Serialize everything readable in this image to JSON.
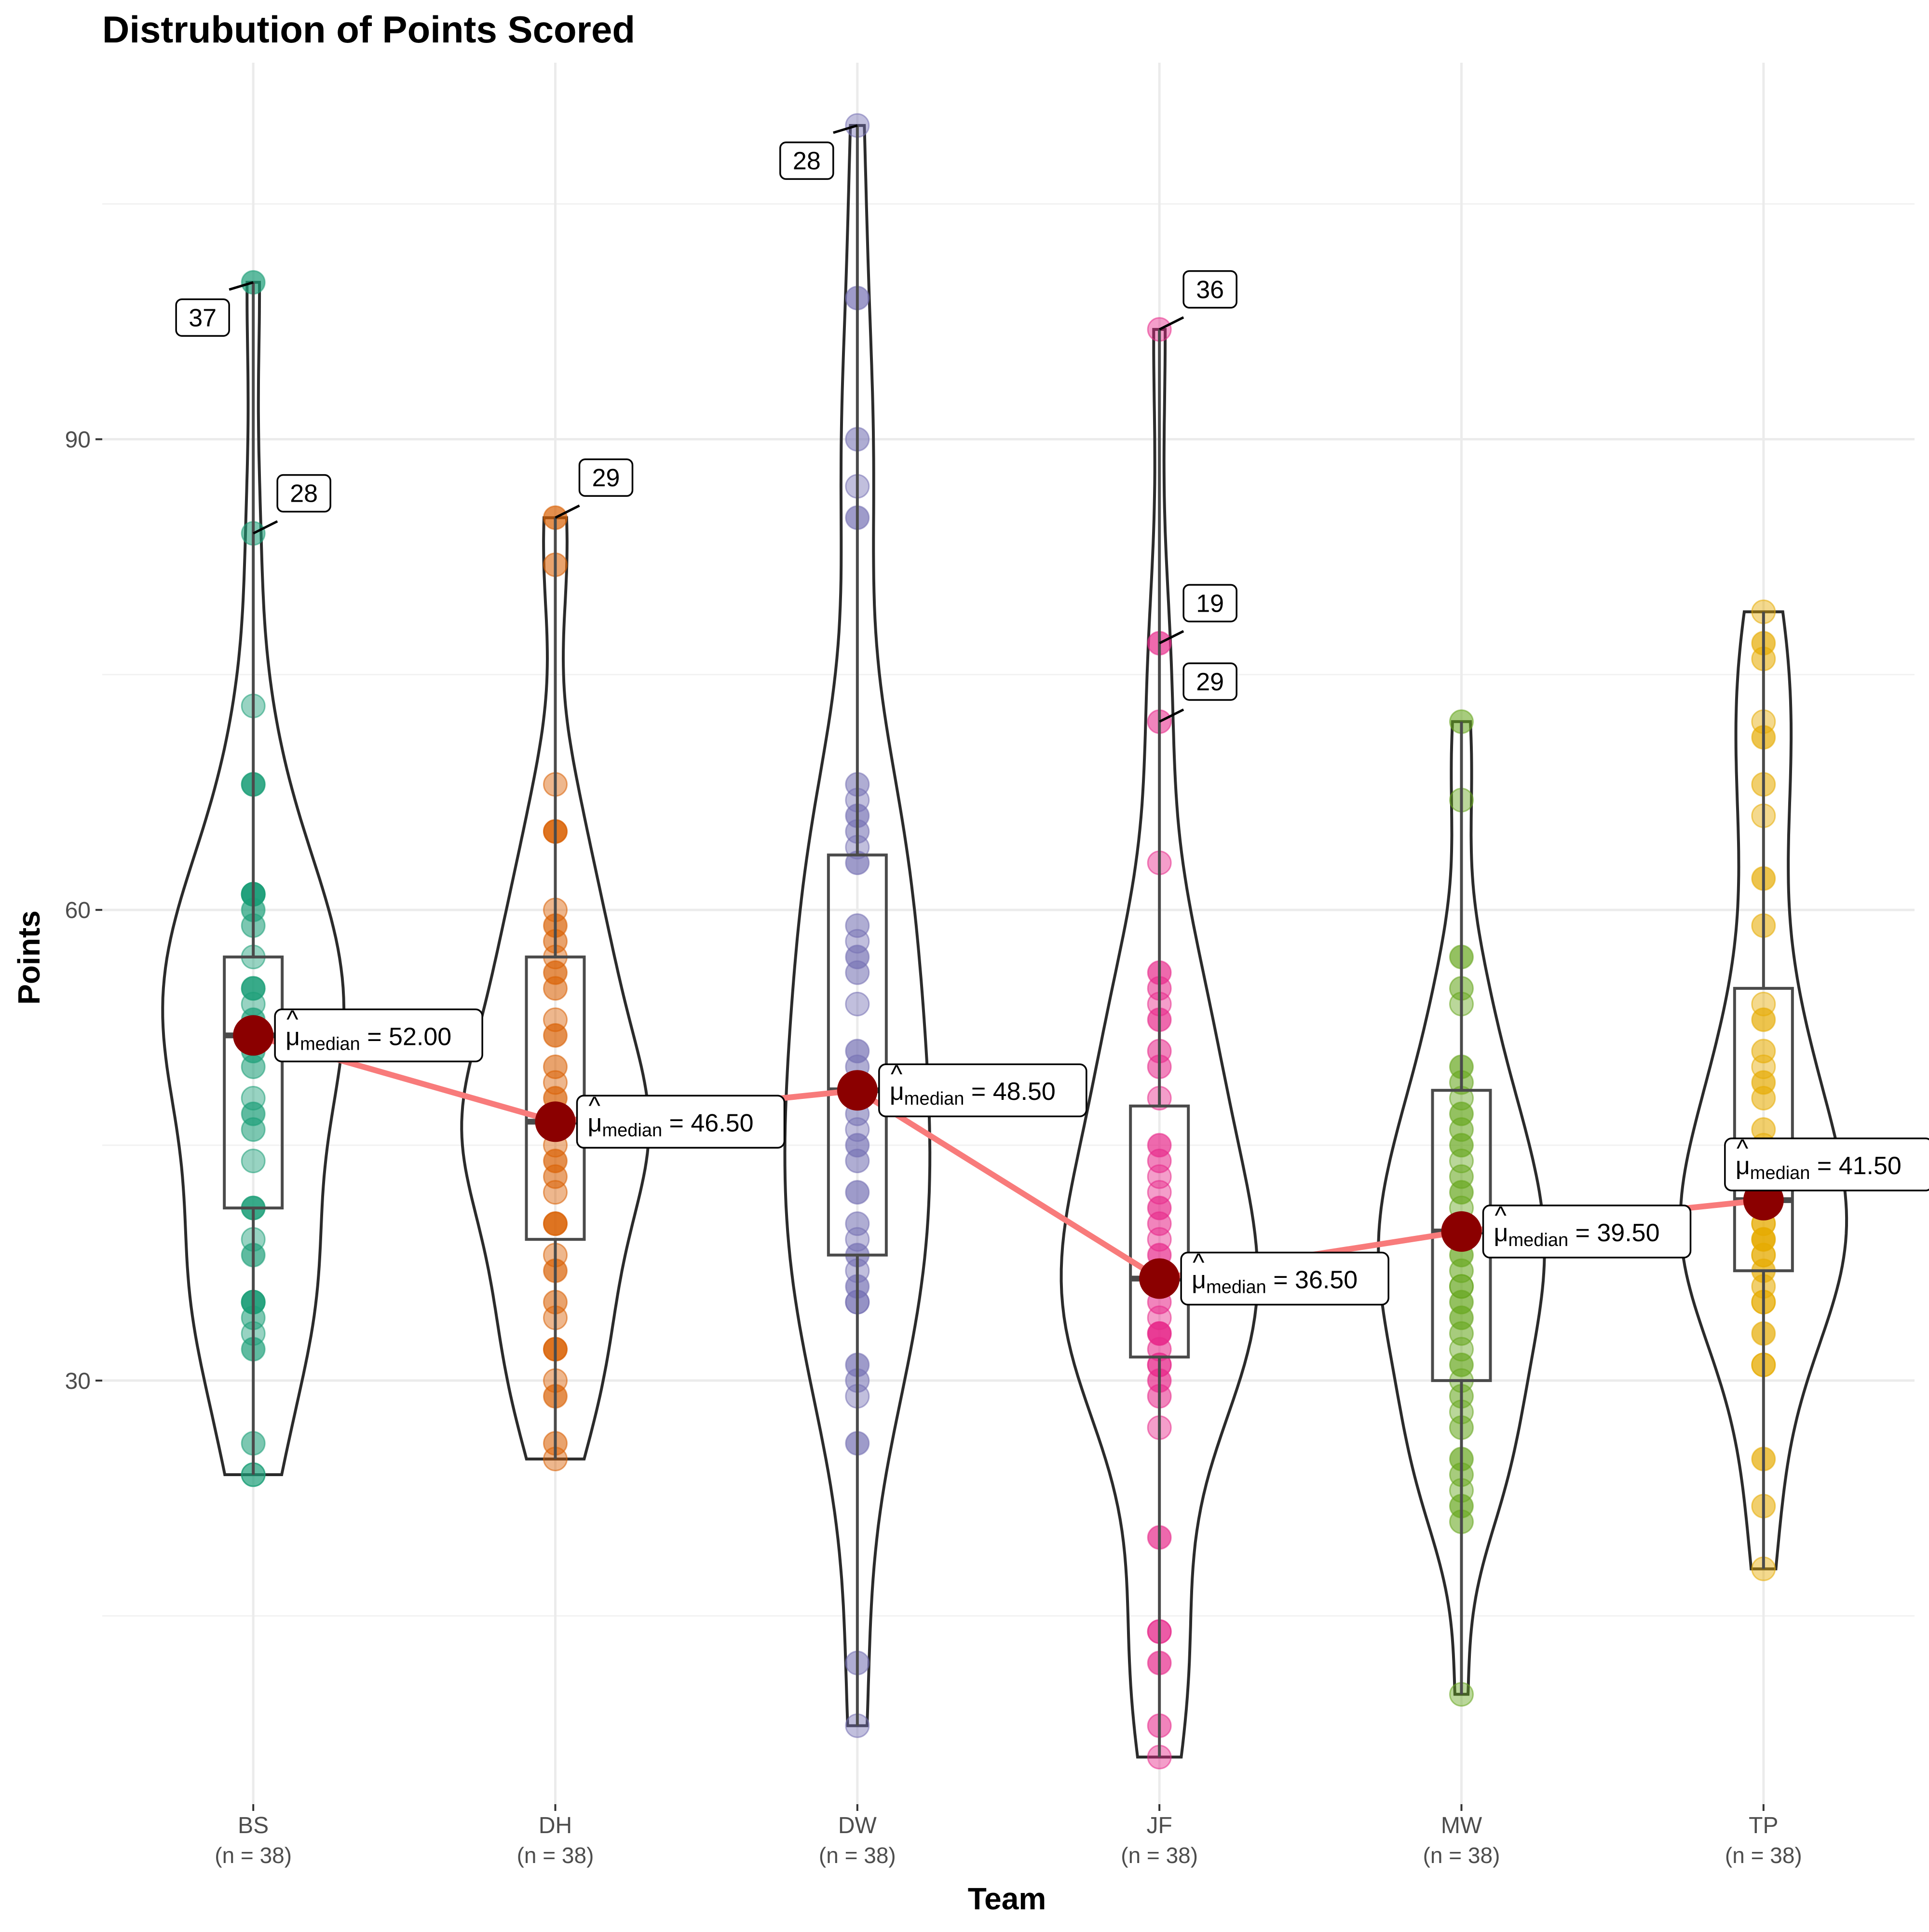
{
  "chart_data": {
    "type": "violin",
    "title": "Distrubution of Points Scored",
    "xlabel": "Team",
    "ylabel": "Points",
    "ylim": [
      3,
      114
    ],
    "yticks": [
      30,
      60,
      90
    ],
    "grid": true,
    "categories": [
      "BS",
      "DH",
      "DW",
      "JF",
      "MW",
      "TP"
    ],
    "n_labels": [
      "(n = 38)",
      "(n = 38)",
      "(n = 38)",
      "(n = 38)",
      "(n = 38)",
      "(n = 38)"
    ],
    "colors": [
      "#1b9e77",
      "#d95f02",
      "#7570b3",
      "#e7298a",
      "#66a61e",
      "#e6ab02"
    ],
    "trend_color": "#f87b7b",
    "median_color": "#8b0000",
    "median_label_prefix": "μ",
    "median_label_hat": "^",
    "median_label_sub": "median",
    "median_label_eq": " = ",
    "series": [
      {
        "name": "BS",
        "points": [
          24,
          26,
          32,
          33,
          34,
          35,
          35,
          35,
          38,
          39,
          41,
          41,
          44,
          46,
          47,
          48,
          50,
          51,
          52,
          52,
          53,
          54,
          55,
          55,
          57,
          59,
          60,
          61,
          61,
          61,
          61,
          68,
          68,
          73,
          84,
          100,
          24,
          52
        ],
        "box": {
          "q1": 41,
          "median": 52,
          "q3": 57,
          "wlow": 24,
          "whigh": 100
        },
        "median_value": "52.00",
        "outliers": [
          {
            "value": 100,
            "label": "37",
            "side": "left"
          },
          {
            "value": 84,
            "label": "28",
            "side": "right"
          }
        ],
        "violin_scale": 0.6
      },
      {
        "name": "DH",
        "points": [
          25,
          26,
          29,
          30,
          32,
          32,
          34,
          35,
          37,
          38,
          40,
          40,
          42,
          43,
          44,
          45,
          46,
          46,
          47,
          47,
          48,
          49,
          50,
          52,
          53,
          55,
          56,
          57,
          58,
          59,
          60,
          65,
          65,
          68,
          82,
          85,
          46,
          47
        ],
        "box": {
          "q1": 39,
          "median": 46.5,
          "q3": 57,
          "wlow": 25,
          "whigh": 85
        },
        "median_value": "46.50",
        "outliers": [
          {
            "value": 85,
            "label": "29",
            "side": "right"
          }
        ],
        "violin_scale": 0.62
      },
      {
        "name": "DW",
        "points": [
          8,
          12,
          26,
          29,
          30,
          31,
          35,
          35,
          38,
          39,
          40,
          42,
          48,
          50,
          51,
          54,
          56,
          57,
          58,
          59,
          63,
          64,
          65,
          66,
          67,
          68,
          85,
          87,
          90,
          99,
          110,
          44,
          45,
          46,
          49,
          36,
          37,
          47
        ],
        "box": {
          "q1": 38,
          "median": 48.5,
          "q3": 63.5,
          "wlow": 8,
          "whigh": 110
        },
        "median_value": "48.50",
        "outliers": [
          {
            "value": 110,
            "label": "28",
            "side": "left"
          }
        ],
        "violin_scale": 0.48
      },
      {
        "name": "JF",
        "points": [
          6,
          8,
          12,
          14,
          14,
          20,
          27,
          29,
          30,
          31,
          32,
          33,
          34,
          35,
          38,
          39,
          40,
          41,
          43,
          44,
          45,
          48,
          51,
          53,
          54,
          55,
          56,
          63,
          72,
          77,
          97,
          31,
          33,
          36,
          36,
          37,
          42,
          50
        ],
        "box": {
          "q1": 31.5,
          "median": 36.5,
          "q3": 47.5,
          "wlow": 6,
          "whigh": 97
        },
        "median_value": "36.50",
        "outliers": [
          {
            "value": 97,
            "label": "36",
            "side": "right"
          },
          {
            "value": 77,
            "label": "19",
            "side": "right"
          },
          {
            "value": 72,
            "label": "29",
            "side": "right"
          }
        ],
        "violin_scale": 0.65
      },
      {
        "name": "MW",
        "points": [
          10,
          21,
          22,
          23,
          24,
          25,
          28,
          29,
          31,
          32,
          33,
          34,
          36,
          37,
          38,
          39,
          40,
          42,
          44,
          46,
          47,
          48,
          49,
          50,
          54,
          55,
          57,
          67,
          72,
          35,
          36,
          39,
          40,
          41,
          43,
          45,
          30,
          27
        ],
        "box": {
          "q1": 30,
          "median": 39.5,
          "q3": 48.5,
          "wlow": 10,
          "whigh": 72
        },
        "median_value": "39.50",
        "outliers": [],
        "violin_scale": 0.55
      },
      {
        "name": "TP",
        "points": [
          18,
          22,
          25,
          31,
          31,
          33,
          35,
          35,
          37,
          38,
          38,
          39,
          40,
          40,
          41,
          42,
          42,
          43,
          45,
          48,
          49,
          50,
          51,
          53,
          54,
          59,
          62,
          66,
          68,
          71,
          72,
          76,
          77,
          79,
          36,
          39,
          44,
          46
        ],
        "box": {
          "q1": 37,
          "median": 41.5,
          "q3": 55,
          "wlow": 18,
          "whigh": 79
        },
        "median_value": "41.50",
        "outliers": [],
        "violin_scale": 0.55
      }
    ]
  }
}
